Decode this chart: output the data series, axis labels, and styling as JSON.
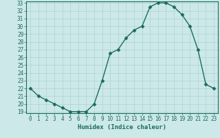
{
  "x": [
    0,
    1,
    2,
    3,
    4,
    5,
    6,
    7,
    8,
    9,
    10,
    11,
    12,
    13,
    14,
    15,
    16,
    17,
    18,
    19,
    20,
    21,
    22,
    23
  ],
  "y": [
    22,
    21,
    20.5,
    20,
    19.5,
    19,
    19,
    19,
    20,
    23,
    26.5,
    27,
    28.5,
    29.5,
    30,
    32.5,
    33,
    33,
    32.5,
    31.5,
    30,
    27,
    22.5,
    22
  ],
  "xlabel": "Humidex (Indice chaleur)",
  "line_color": "#1a6b5a",
  "marker": "D",
  "marker_size": 2.5,
  "bg_color": "#cce8e8",
  "grid_color": "#aad4d0",
  "ylim": [
    19,
    33
  ],
  "xlim": [
    -0.5,
    23.5
  ],
  "yticks": [
    19,
    20,
    21,
    22,
    23,
    24,
    25,
    26,
    27,
    28,
    29,
    30,
    31,
    32,
    33
  ],
  "xticks": [
    0,
    1,
    2,
    3,
    4,
    5,
    6,
    7,
    8,
    9,
    10,
    11,
    12,
    13,
    14,
    15,
    16,
    17,
    18,
    19,
    20,
    21,
    22,
    23
  ],
  "tick_fontsize": 5.5,
  "xlabel_fontsize": 6.5
}
